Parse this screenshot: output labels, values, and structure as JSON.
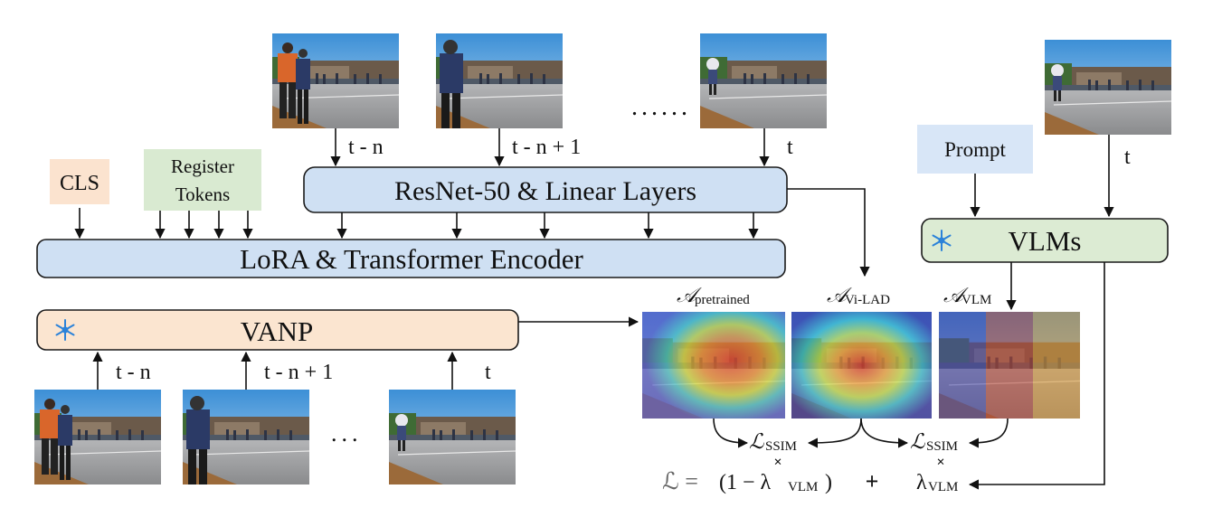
{
  "blocks": {
    "cls": "CLS",
    "register_line1": "Register",
    "register_line2": "Tokens",
    "resnet": "ResNet-50 & Linear Layers",
    "encoder": "LoRA & Transformer Encoder",
    "vanp": "VANP",
    "prompt": "Prompt",
    "vlms": "VLMs"
  },
  "time_labels": {
    "top_tn": "t - n",
    "top_tn1": "t - n + 1",
    "top_t": "t",
    "vlm_t": "t",
    "bottom_tn": "t - n",
    "bottom_tn1": "t - n + 1",
    "bottom_t": "t"
  },
  "ellipsis": {
    "top": "......",
    "bottom": "..."
  },
  "maps": {
    "pretrained_sym": "𝒜",
    "pretrained_sub": "pretrained",
    "vilad_sym": "𝒜",
    "vilad_sub": "Vi-LAD",
    "vlm_sym": "𝒜",
    "vlm_sub": "VLM"
  },
  "losses": {
    "ssim_sym": "ℒ",
    "ssim_sub": "SSIM",
    "total_lhs": "ℒ =",
    "weight_open": "(1 − λ",
    "weight_sub": "VLM",
    "weight_close": ")",
    "plus": "+",
    "lambda": "λ",
    "lambda_sub": "VLM",
    "times": "×"
  },
  "icons": {
    "frozen": "snowflake-icon"
  },
  "colors": {
    "blue_box": "#cfe0f3",
    "orange_box": "#fbe5d0",
    "green_box": "#dcebd3"
  }
}
